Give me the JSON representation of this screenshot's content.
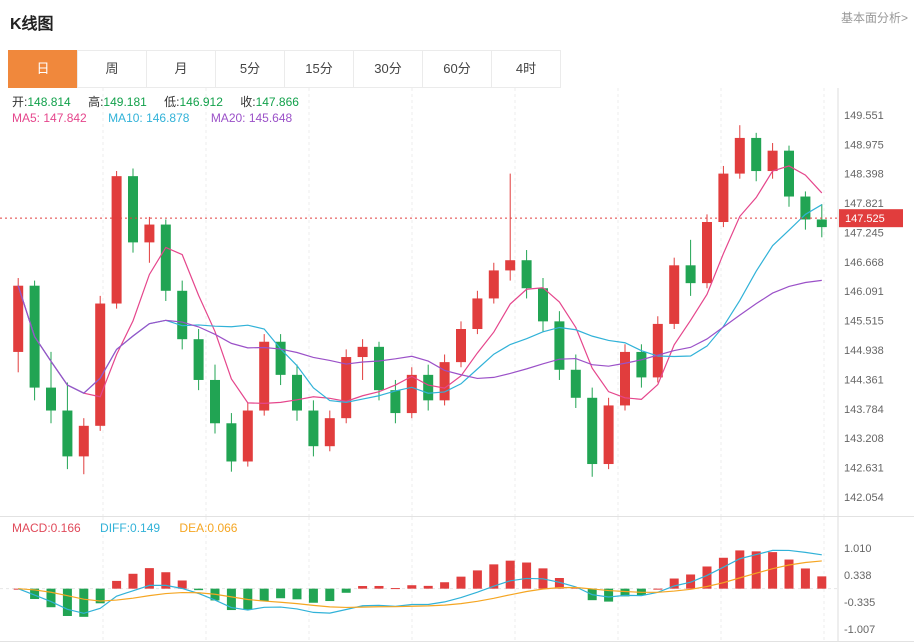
{
  "header": {
    "title": "K线图",
    "link": "基本面分析>"
  },
  "tabs": {
    "items": [
      {
        "label": "日",
        "active": true
      },
      {
        "label": "周",
        "active": false
      },
      {
        "label": "月",
        "active": false
      },
      {
        "label": "5分",
        "active": false
      },
      {
        "label": "15分",
        "active": false
      },
      {
        "label": "30分",
        "active": false
      },
      {
        "label": "60分",
        "active": false
      },
      {
        "label": "4时",
        "active": false
      }
    ]
  },
  "info": {
    "open_label": "开:",
    "open": "148.814",
    "high_label": "高:",
    "high": "149.181",
    "low_label": "低:",
    "low": "146.912",
    "close_label": "收:",
    "close": "147.866",
    "ma5": "MA5: 147.842",
    "ma10": "MA10: 146.878",
    "ma20": "MA20: 145.648"
  },
  "macd_info": {
    "macd": "MACD:0.166",
    "diff": "DIFF:0.149",
    "dea": "DEA:0.066"
  },
  "colors": {
    "accent": "#f0883c",
    "up": "#e13d3d",
    "down": "#21a453",
    "ma5": "#e5468c",
    "ma10": "#31b2d8",
    "ma20": "#9b51c8",
    "diff": "#31b2d8",
    "dea": "#f5a623",
    "macd_label": "#e04a5a",
    "value_green": "#12a14b",
    "grid": "#ededed",
    "axis_text": "#666666"
  },
  "chart_data": {
    "type": "candlestick",
    "timeframe": "日",
    "price_line": 147.525,
    "price_line_label": "147.525",
    "ma_windows": [
      5,
      10,
      20
    ],
    "y_ticks_main": [
      "149.551",
      "148.975",
      "148.398",
      "147.821",
      "147.245",
      "146.668",
      "146.091",
      "145.515",
      "144.938",
      "144.361",
      "143.784",
      "143.208",
      "142.631",
      "142.054"
    ],
    "y_ticks_macd": [
      "1.010",
      "0.338",
      "-0.335",
      "-1.007"
    ],
    "candles": [
      [
        144.9,
        146.35,
        144.5,
        146.2
      ],
      [
        146.2,
        146.3,
        143.95,
        144.2
      ],
      [
        144.2,
        144.9,
        143.5,
        143.75
      ],
      [
        143.75,
        144.3,
        142.6,
        142.85
      ],
      [
        142.85,
        143.6,
        142.5,
        143.45
      ],
      [
        143.45,
        146.0,
        143.35,
        145.85
      ],
      [
        145.85,
        148.45,
        145.75,
        148.35
      ],
      [
        148.35,
        148.5,
        146.85,
        147.05
      ],
      [
        147.05,
        147.55,
        146.65,
        147.4
      ],
      [
        147.4,
        147.5,
        145.9,
        146.1
      ],
      [
        146.1,
        146.3,
        144.95,
        145.15
      ],
      [
        145.15,
        145.35,
        144.15,
        144.35
      ],
      [
        144.35,
        144.65,
        143.3,
        143.5
      ],
      [
        143.5,
        143.7,
        142.55,
        142.75
      ],
      [
        142.75,
        143.9,
        142.65,
        143.75
      ],
      [
        143.75,
        145.25,
        143.65,
        145.1
      ],
      [
        145.1,
        145.25,
        144.25,
        144.45
      ],
      [
        144.45,
        144.65,
        143.55,
        143.75
      ],
      [
        143.75,
        143.95,
        142.85,
        143.05
      ],
      [
        143.05,
        143.75,
        142.95,
        143.6
      ],
      [
        143.6,
        144.95,
        143.5,
        144.8
      ],
      [
        144.8,
        145.15,
        144.35,
        145.0
      ],
      [
        145.0,
        145.1,
        143.95,
        144.15
      ],
      [
        144.15,
        144.35,
        143.5,
        143.7
      ],
      [
        143.7,
        144.6,
        143.6,
        144.45
      ],
      [
        144.45,
        144.65,
        143.75,
        143.95
      ],
      [
        143.95,
        144.85,
        143.85,
        144.7
      ],
      [
        144.7,
        145.5,
        144.6,
        145.35
      ],
      [
        145.35,
        146.1,
        145.25,
        145.95
      ],
      [
        145.95,
        146.65,
        145.85,
        146.5
      ],
      [
        146.5,
        148.4,
        146.3,
        146.7
      ],
      [
        146.7,
        146.9,
        145.95,
        146.15
      ],
      [
        146.15,
        146.35,
        145.3,
        145.5
      ],
      [
        145.5,
        145.7,
        144.35,
        144.55
      ],
      [
        144.55,
        144.85,
        143.8,
        144.0
      ],
      [
        144.0,
        144.2,
        142.45,
        142.7
      ],
      [
        142.7,
        144.0,
        142.6,
        143.85
      ],
      [
        143.85,
        145.05,
        143.75,
        144.9
      ],
      [
        144.9,
        145.05,
        144.2,
        144.4
      ],
      [
        144.4,
        145.6,
        144.3,
        145.45
      ],
      [
        145.45,
        146.75,
        145.35,
        146.6
      ],
      [
        146.6,
        147.1,
        146.0,
        146.25
      ],
      [
        146.25,
        147.6,
        146.15,
        147.45
      ],
      [
        147.45,
        148.55,
        147.35,
        148.4
      ],
      [
        148.4,
        149.35,
        148.3,
        149.1
      ],
      [
        149.1,
        149.2,
        148.25,
        148.45
      ],
      [
        148.45,
        149.0,
        148.3,
        148.85
      ],
      [
        148.85,
        148.95,
        147.75,
        147.95
      ],
      [
        147.95,
        148.05,
        147.3,
        147.5
      ],
      [
        147.5,
        147.8,
        147.15,
        147.35
      ]
    ]
  }
}
